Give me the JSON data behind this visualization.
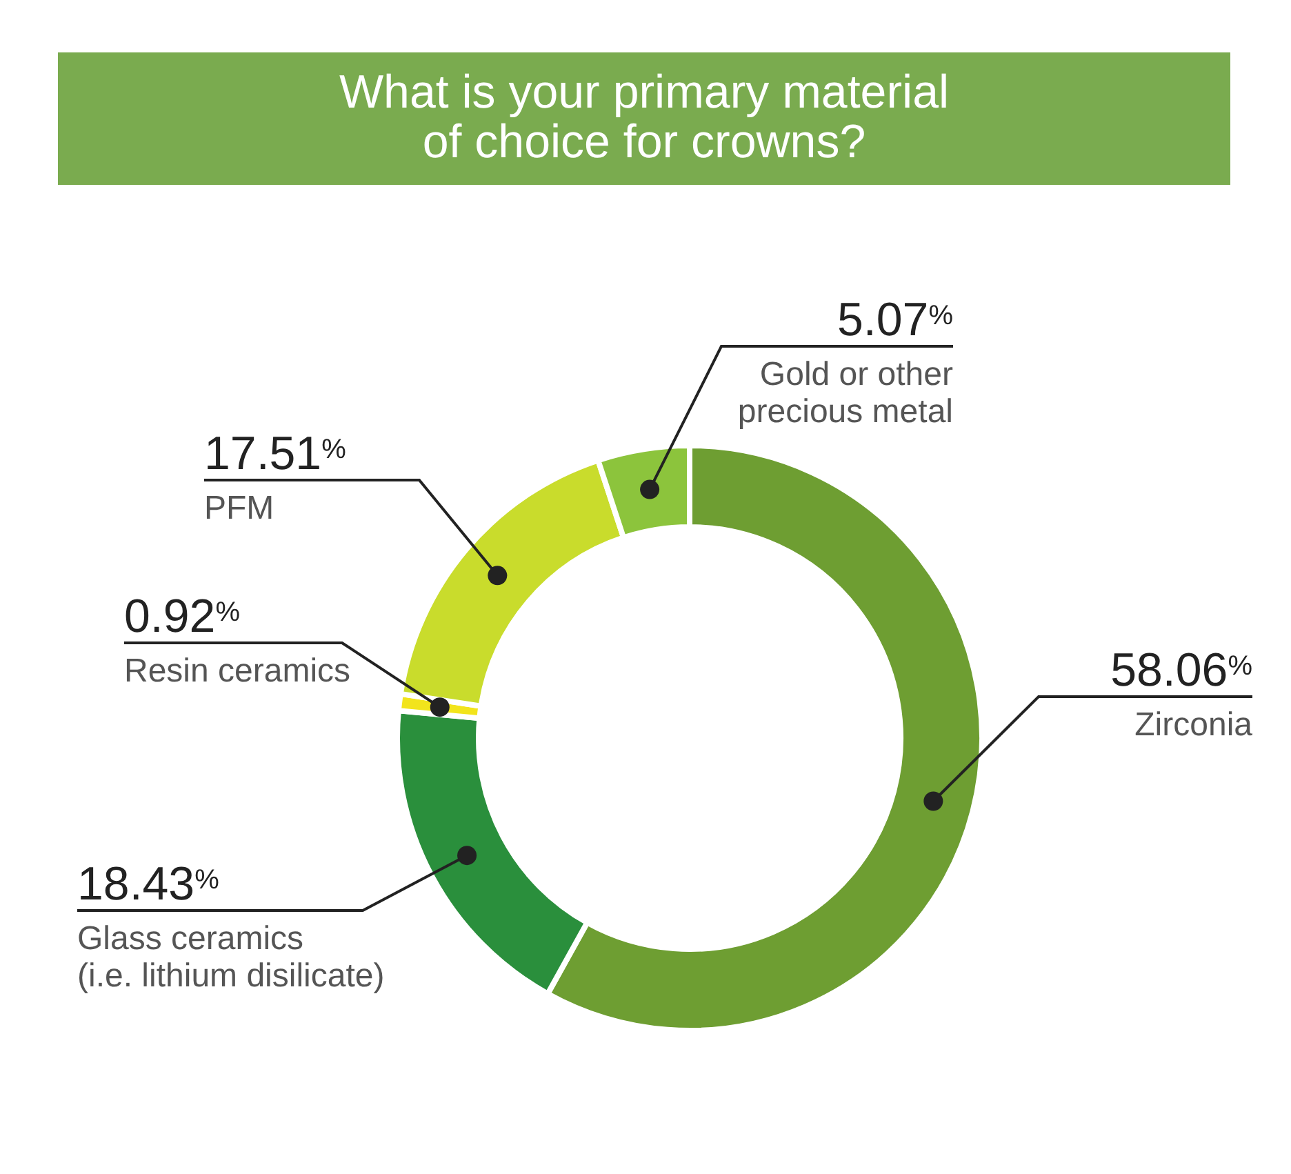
{
  "chart_data": {
    "type": "donut",
    "title": "What is your primary material of choice for crowns?",
    "categories": [
      "Zirconia",
      "Glass ceramics (i.e. lithium disilicate)",
      "Resin ceramics",
      "PFM",
      "Gold or other precious metal"
    ],
    "values": [
      58.06,
      18.43,
      0.92,
      17.51,
      5.07
    ],
    "colors": [
      "#6e9e32",
      "#2a8f3c",
      "#f2e41c",
      "#c9dc2c",
      "#8cc43c"
    ],
    "value_labels": [
      "58.06$^{%}$",
      "18.43$^{%}$",
      "0.92$^{%}$",
      "17.51$^{%}$",
      "5.07$^{%}$"
    ]
  }
}
